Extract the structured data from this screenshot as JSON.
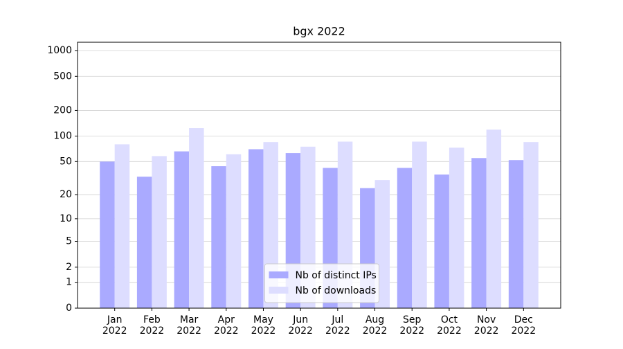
{
  "chart_data": {
    "type": "bar",
    "title": "bgx 2022",
    "categories": [
      "Jan\n2022",
      "Feb\n2022",
      "Mar\n2022",
      "Apr\n2022",
      "May\n2022",
      "Jun\n2022",
      "Jul\n2022",
      "Aug\n2022",
      "Sep\n2022",
      "Oct\n2022",
      "Nov\n2022",
      "Dec\n2022"
    ],
    "series": [
      {
        "name": "Nb of distinct IPs",
        "color": "#aaaaff",
        "values": [
          50,
          33,
          66,
          44,
          70,
          63,
          42,
          24,
          42,
          35,
          55,
          52
        ]
      },
      {
        "name": "Nb of downloads",
        "color": "#ddddff",
        "values": [
          80,
          58,
          124,
          61,
          85,
          75,
          86,
          30,
          86,
          73,
          119,
          85
        ]
      }
    ],
    "yscale": "log1p",
    "ylim": [
      0,
      1250
    ],
    "yticks": [
      0,
      1,
      2,
      5,
      10,
      20,
      50,
      100,
      200,
      500,
      1000
    ],
    "grid": true,
    "legend": "lower center"
  }
}
